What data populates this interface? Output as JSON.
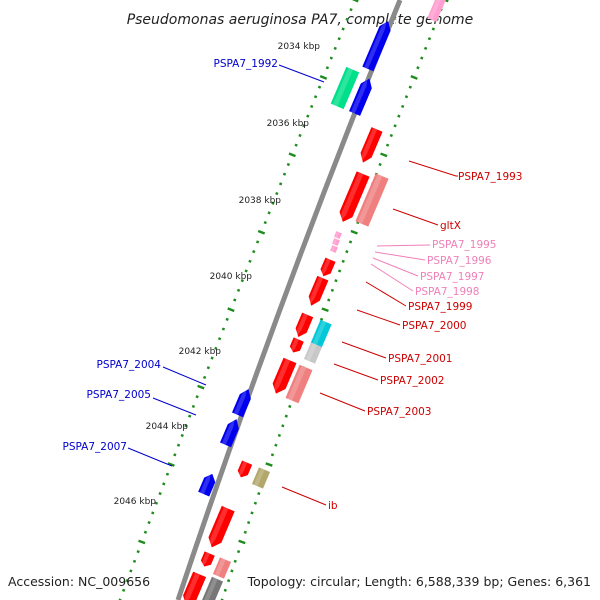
{
  "title": "Pseudomonas aeruginosa PA7, complete genome",
  "footer": {
    "accession": "Accession: NC_009656",
    "summary": "Topology: circular; Length: 6,588,339 bp; Genes: 6,361"
  },
  "colors": {
    "plus_cds": "#ff0000",
    "pseudo_cds": "#f08080",
    "minus_cds": "#0000ee",
    "teal_feature": "#00e08a",
    "cyan_feature": "#00c8d8",
    "grey_feature": "#c8c8c8",
    "olive_feature": "#b3a86b",
    "pink_feature": "#ff9ecf",
    "backbone": "#8a8a8a",
    "tick": "#1e8c1e",
    "label_blue": "#0000cc",
    "label_red": "#cc0000",
    "label_pink": "#f080b8"
  },
  "ticks": {
    "labels": [
      {
        "text": "2034 kbp"
      },
      {
        "text": "2036 kbp"
      },
      {
        "text": "2038 kbp"
      },
      {
        "text": "2040 kbp"
      },
      {
        "text": "2042 kbp"
      },
      {
        "text": "2044 kbp"
      },
      {
        "text": "2046 kbp"
      }
    ]
  },
  "gene_labels": [
    {
      "text": "PSPA7_1992",
      "kind": "blue"
    },
    {
      "text": "PSPA7_2004",
      "kind": "blue"
    },
    {
      "text": "PSPA7_2005",
      "kind": "blue"
    },
    {
      "text": "PSPA7_2007",
      "kind": "blue"
    },
    {
      "text": "PSPA7_1993",
      "kind": "red"
    },
    {
      "text": "gltX",
      "kind": "red"
    },
    {
      "text": "PSPA7_1995",
      "kind": "pink"
    },
    {
      "text": "PSPA7_1996",
      "kind": "pink"
    },
    {
      "text": "PSPA7_1997",
      "kind": "pink"
    },
    {
      "text": "PSPA7_1998",
      "kind": "pink"
    },
    {
      "text": "PSPA7_1999",
      "kind": "red"
    },
    {
      "text": "PSPA7_2000",
      "kind": "red"
    },
    {
      "text": "PSPA7_2001",
      "kind": "red"
    },
    {
      "text": "PSPA7_2002",
      "kind": "red"
    },
    {
      "text": "PSPA7_2003",
      "kind": "red"
    },
    {
      "text": "ib",
      "kind": "red"
    }
  ]
}
